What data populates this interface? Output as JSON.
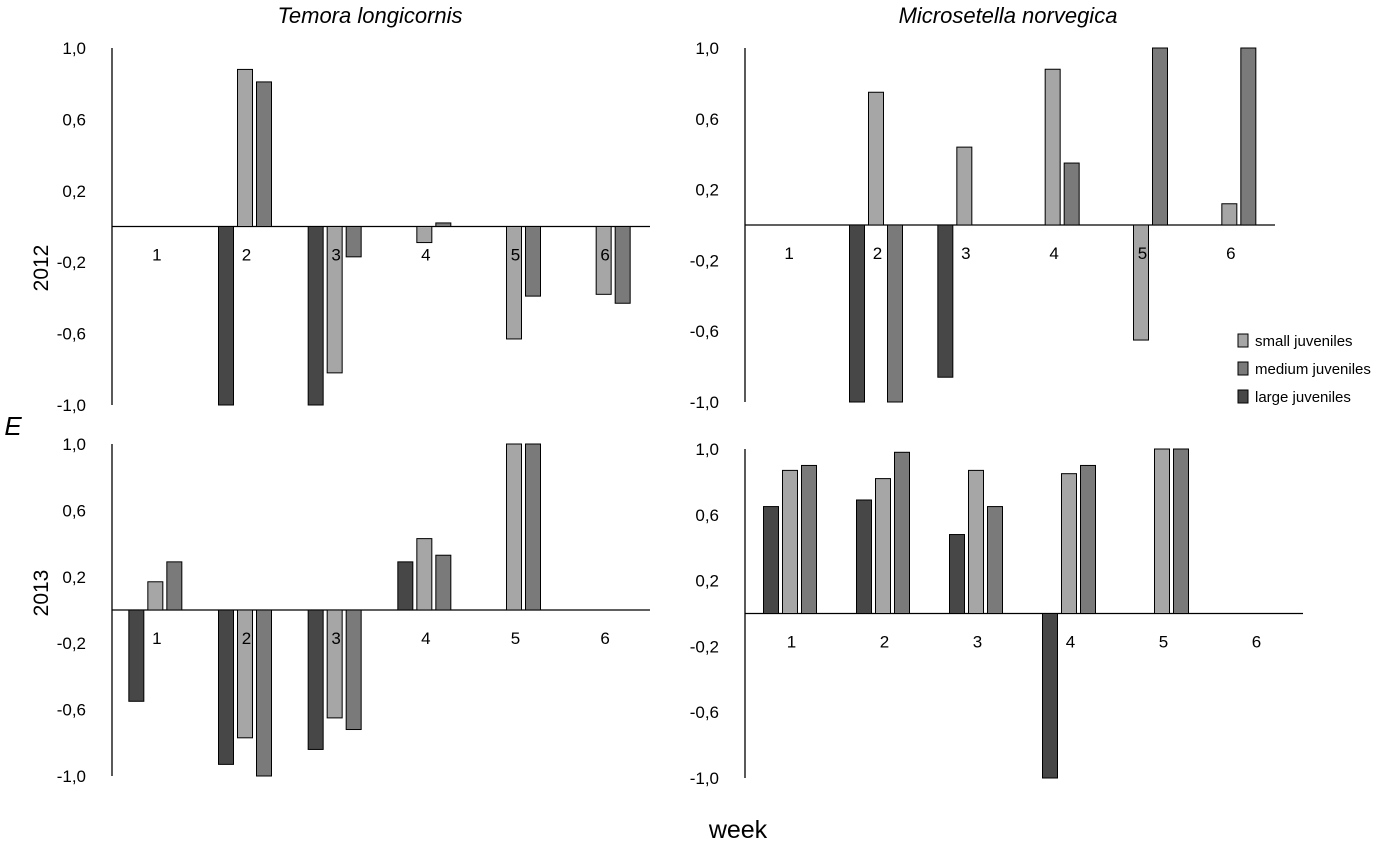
{
  "figure": {
    "titles": [
      "Temora longicornis",
      "Microsetella norvegica"
    ],
    "row_labels": [
      "2012",
      "2013"
    ],
    "y_axis_label": "E",
    "x_axis_label": "week"
  },
  "legend": {
    "entries": [
      {
        "key": "small",
        "label": "small juveniles",
        "color": "#a6a6a6"
      },
      {
        "key": "medium",
        "label": "medium juveniles",
        "color": "#7a7a7a"
      },
      {
        "key": "large",
        "label": "large juveniles",
        "color": "#474747"
      }
    ]
  },
  "chart_data": [
    {
      "id": "temora-2012",
      "type": "bar",
      "species": "Temora longicornis",
      "year": "2012",
      "categories": [
        "1",
        "2",
        "3",
        "4",
        "5",
        "6"
      ],
      "ylim": [
        -1.0,
        1.0
      ],
      "yticks": [
        "1,0",
        "0,6",
        "0,2",
        "-0,2",
        "-0,6",
        "-1,0"
      ],
      "series": [
        {
          "name": "large juveniles",
          "values": [
            null,
            -1.0,
            -1.0,
            null,
            null,
            null
          ]
        },
        {
          "name": "small juveniles",
          "values": [
            null,
            0.88,
            -0.82,
            -0.09,
            -0.63,
            -0.38
          ]
        },
        {
          "name": "medium juveniles",
          "values": [
            null,
            0.81,
            -0.17,
            0.02,
            -0.39,
            -0.43
          ]
        }
      ]
    },
    {
      "id": "microsetella-2012",
      "type": "bar",
      "species": "Microsetella norvegica",
      "year": "2012",
      "categories": [
        "1",
        "2",
        "3",
        "4",
        "5",
        "6"
      ],
      "ylim": [
        -1.0,
        1.0
      ],
      "yticks": [
        "1,0",
        "0,6",
        "0,2",
        "-0,2",
        "-0,6",
        "-1,0"
      ],
      "series": [
        {
          "name": "large juveniles",
          "values": [
            null,
            -1.0,
            -0.86,
            null,
            null,
            null
          ]
        },
        {
          "name": "small juveniles",
          "values": [
            null,
            0.75,
            0.44,
            0.88,
            -0.65,
            0.12
          ]
        },
        {
          "name": "medium juveniles",
          "values": [
            null,
            -1.0,
            null,
            0.35,
            1.0,
            1.0
          ]
        }
      ]
    },
    {
      "id": "temora-2013",
      "type": "bar",
      "species": "Temora longicornis",
      "year": "2013",
      "categories": [
        "1",
        "2",
        "3",
        "4",
        "5",
        "6"
      ],
      "ylim": [
        -1.0,
        1.0
      ],
      "yticks": [
        "1,0",
        "0,6",
        "0,2",
        "-0,2",
        "-0,6",
        "-1,0"
      ],
      "series": [
        {
          "name": "large juveniles",
          "values": [
            -0.55,
            -0.93,
            -0.84,
            0.29,
            null,
            null
          ]
        },
        {
          "name": "small juveniles",
          "values": [
            0.17,
            -0.77,
            -0.65,
            0.43,
            1.0,
            null
          ]
        },
        {
          "name": "medium juveniles",
          "values": [
            0.29,
            -1.0,
            -0.72,
            0.33,
            1.0,
            null
          ]
        }
      ]
    },
    {
      "id": "microsetella-2013",
      "type": "bar",
      "species": "Microsetella norvegica",
      "year": "2013",
      "categories": [
        "1",
        "2",
        "3",
        "4",
        "5",
        "6"
      ],
      "ylim": [
        -1.0,
        1.0
      ],
      "yticks": [
        "1,0",
        "0,6",
        "0,2",
        "-0,2",
        "-0,6",
        "-1,0"
      ],
      "series": [
        {
          "name": "large juveniles",
          "values": [
            0.65,
            0.69,
            0.48,
            -1.0,
            null,
            null
          ]
        },
        {
          "name": "small juveniles",
          "values": [
            0.87,
            0.82,
            0.87,
            0.85,
            1.0,
            null
          ]
        },
        {
          "name": "medium juveniles",
          "values": [
            0.9,
            0.98,
            0.65,
            0.9,
            1.0,
            null
          ]
        }
      ]
    }
  ]
}
